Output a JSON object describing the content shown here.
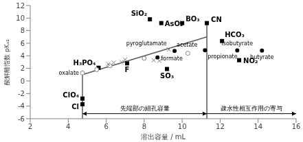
{
  "chart_data": {
    "type": "scatter",
    "x_label": "溶出容量 / mL",
    "y_label": "酸解離指数 pKₐ₁",
    "xlim": [
      2,
      16
    ],
    "xticks": [
      2,
      4,
      6,
      8,
      10,
      12,
      14,
      16
    ],
    "ylim": [
      -6,
      12
    ],
    "yticks": [
      -6,
      -4,
      -2,
      0,
      2,
      4,
      6,
      8,
      10,
      12
    ],
    "grid": false,
    "series": [
      {
        "marker": "square",
        "color": "#000000",
        "x": [
          8.3,
          8.9,
          10.0,
          11.3,
          12.1,
          13.0,
          5.6,
          7.1,
          9.2,
          4.75,
          4.75
        ],
        "values": [
          9.8,
          9.2,
          9.2,
          9.2,
          6.35,
          3.3,
          2.1,
          2.8,
          1.9,
          -2.8,
          -3.7
        ],
        "point_labels": [
          "SiO₂",
          "AsO₂",
          "BO₃",
          "CN",
          "HCO₃",
          "NO₂",
          "H₃PO₄",
          "F",
          "SO₃",
          "ClO₄",
          "Cl"
        ]
      },
      {
        "marker": "circle",
        "color": "#000000",
        "x": [
          8.7,
          9.6,
          11.2,
          12.9,
          14.2
        ],
        "values": [
          3.75,
          4.76,
          4.87,
          4.86,
          4.82
        ],
        "point_labels": [
          "formate",
          "acetate",
          "propionate",
          "isobutyrate",
          "butyrate"
        ]
      },
      {
        "marker": "open_circle",
        "color": "#7f7f7f",
        "x": [
          4.75,
          5.5,
          6.2,
          8.0,
          10.3
        ],
        "values": [
          1.27,
          1.8,
          2.4,
          3.6,
          4.4
        ],
        "point_labels": [
          "oxalate",
          null,
          null,
          null,
          null
        ]
      },
      {
        "marker": "x",
        "color": "#7f7f7f",
        "x": [
          6.1,
          6.4,
          6.8,
          7.0,
          8.5,
          8.8,
          9.0,
          9.3
        ],
        "values": [
          2.7,
          2.9,
          3.0,
          3.4,
          3.3,
          3.2,
          3.5,
          5.0
        ],
        "point_labels": [
          null,
          null,
          null,
          null,
          null,
          null,
          null,
          "pyroglutamate"
        ]
      }
    ],
    "lines": [
      {
        "x": [
          4.75,
          11.3
        ],
        "values": [
          1.0,
          7.0
        ],
        "color": "#595959",
        "line_style": "solid"
      },
      {
        "x": [
          4.75,
          4.75
        ],
        "values": [
          -6,
          1.27
        ],
        "color": "#595959",
        "line_style": "solid"
      },
      {
        "x": [
          11.3,
          11.3
        ],
        "values": [
          -6,
          9.2
        ],
        "color": "#595959",
        "line_style": "solid"
      }
    ],
    "annotations": [
      {
        "text": "先端部の細孔容量",
        "x": [
          4.75,
          11.3
        ],
        "y": -5.2,
        "marker": "double_arrow"
      },
      {
        "text": "疎水性相互作用の寄与",
        "x": [
          11.3,
          16
        ],
        "y": -5.2,
        "marker": "arrow"
      }
    ]
  }
}
